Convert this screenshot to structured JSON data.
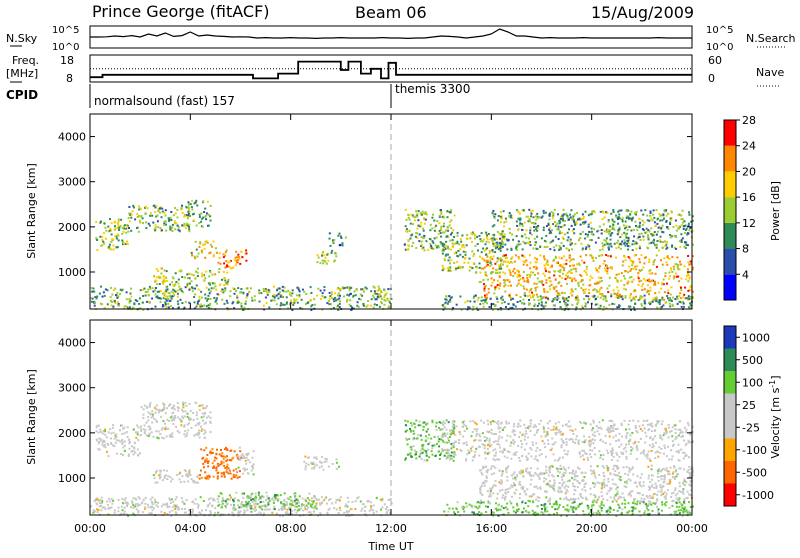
{
  "header": {
    "station": "Prince George (fitACF)",
    "beam": "Beam 06",
    "date": "15/Aug/2009"
  },
  "nsky_panel": {
    "left_label": "N.Sky",
    "right_label": "N.Search",
    "left_ticks": [
      "10^5",
      "10^0"
    ],
    "right_ticks": [
      "10^5",
      "10^0"
    ],
    "trace": [
      0.55,
      0.55,
      0.56,
      0.6,
      0.57,
      0.62,
      0.55,
      0.7,
      0.6,
      0.75,
      0.58,
      0.62,
      0.8,
      0.6,
      0.65,
      0.6,
      0.58,
      0.55,
      0.56,
      0.55,
      0.5,
      0.52,
      0.5,
      0.5,
      0.52,
      0.5,
      0.5,
      0.48,
      0.5,
      0.5,
      0.52,
      0.5,
      0.5,
      0.5,
      0.5,
      0.52,
      0.5,
      0.5,
      0.48,
      0.5,
      0.5,
      0.55,
      0.6,
      0.58,
      0.55,
      0.5,
      0.55,
      0.6,
      0.7,
      0.95,
      0.8,
      0.6,
      0.6,
      0.55,
      0.5,
      0.52,
      0.5,
      0.5,
      0.5,
      0.52,
      0.5,
      0.5,
      0.5,
      0.5,
      0.5,
      0.5,
      0.5,
      0.5,
      0.52,
      0.5,
      0.5,
      0.5,
      0.5
    ]
  },
  "freq_panel": {
    "left_label_1": "Freq.",
    "left_label_2": "[MHz]",
    "right_label": "Nave",
    "left_ticks": [
      "18",
      "8"
    ],
    "right_ticks": [
      "60",
      "0"
    ],
    "nave_level": 0.55,
    "freq_steps": [
      {
        "t": 0.0,
        "v": 0.2
      },
      {
        "t": 0.5,
        "v": 0.3
      },
      {
        "t": 6.5,
        "v": 0.15
      },
      {
        "t": 7.5,
        "v": 0.35
      },
      {
        "t": 8.3,
        "v": 0.85
      },
      {
        "t": 10.0,
        "v": 0.5
      },
      {
        "t": 10.3,
        "v": 0.85
      },
      {
        "t": 10.8,
        "v": 0.35
      },
      {
        "t": 11.2,
        "v": 0.55
      },
      {
        "t": 11.6,
        "v": 0.15
      },
      {
        "t": 11.9,
        "v": 0.8
      },
      {
        "t": 12.2,
        "v": 0.3
      },
      {
        "t": 24.0,
        "v": 0.3
      }
    ]
  },
  "cpid": {
    "label": "CPID",
    "mode_1": "normalsound (fast) 157",
    "mode_2": "themis 3300",
    "switch_time": 12.0
  },
  "chart_data": [
    {
      "type": "heatmap",
      "title": "",
      "xlabel": "Time UT",
      "ylabel": "Slant Range [km]",
      "xlim": [
        0,
        24
      ],
      "ylim": [
        180,
        4500
      ],
      "x_ticks": [
        "00:00",
        "04:00",
        "08:00",
        "12:00",
        "16:00",
        "20:00",
        "00:00"
      ],
      "y_ticks": [
        "1000",
        "2000",
        "3000",
        "4000"
      ],
      "y_tick_values": [
        1000,
        2000,
        3000,
        4000
      ],
      "colorbar_label": "Power [dB]",
      "colorbar_ticks": [
        "4",
        "8",
        "12",
        "16",
        "20",
        "24",
        "28"
      ],
      "colorbar_colors": [
        "#0000ff",
        "#2a4faa",
        "#2e8b57",
        "#9acd32",
        "#ffcc00",
        "#ff8800",
        "#ff0000"
      ],
      "scatter_regions": [
        {
          "t0": 0.2,
          "t1": 1.5,
          "r0": 1500,
          "r1": 2200,
          "intensity": 0.5
        },
        {
          "t0": 1.5,
          "t1": 4.0,
          "r0": 1900,
          "r1": 2500,
          "intensity": 0.45
        },
        {
          "t0": 3.8,
          "t1": 4.8,
          "r0": 2000,
          "r1": 2600,
          "intensity": 0.4
        },
        {
          "t0": 4.0,
          "t1": 5.0,
          "r0": 1300,
          "r1": 1700,
          "intensity": 0.65
        },
        {
          "t0": 5.0,
          "t1": 6.2,
          "r0": 1100,
          "r1": 1500,
          "intensity": 0.8
        },
        {
          "t0": 2.5,
          "t1": 5.5,
          "r0": 700,
          "r1": 1100,
          "intensity": 0.55
        },
        {
          "t0": 0.0,
          "t1": 12.0,
          "r0": 180,
          "r1": 700,
          "intensity": 0.4
        },
        {
          "t0": 9.0,
          "t1": 9.8,
          "r0": 1200,
          "r1": 1500,
          "intensity": 0.45
        },
        {
          "t0": 9.5,
          "t1": 10.2,
          "r0": 1600,
          "r1": 1900,
          "intensity": 0.3
        },
        {
          "t0": 12.5,
          "t1": 14.5,
          "r0": 1500,
          "r1": 2400,
          "intensity": 0.45
        },
        {
          "t0": 14.0,
          "t1": 16.5,
          "r0": 1000,
          "r1": 1900,
          "intensity": 0.5
        },
        {
          "t0": 15.5,
          "t1": 24.0,
          "r0": 400,
          "r1": 1400,
          "intensity": 0.7
        },
        {
          "t0": 16.0,
          "t1": 24.0,
          "r0": 1500,
          "r1": 2400,
          "intensity": 0.4
        },
        {
          "t0": 14.0,
          "t1": 24.0,
          "r0": 180,
          "r1": 500,
          "intensity": 0.35
        }
      ]
    },
    {
      "type": "heatmap",
      "title": "",
      "xlabel": "Time UT",
      "ylabel": "Slant Range [km]",
      "xlim": [
        0,
        24
      ],
      "ylim": [
        180,
        4500
      ],
      "x_ticks": [
        "00:00",
        "04:00",
        "08:00",
        "12:00",
        "16:00",
        "20:00",
        "00:00"
      ],
      "y_ticks": [
        "1000",
        "2000",
        "3000",
        "4000"
      ],
      "y_tick_values": [
        1000,
        2000,
        3000,
        4000
      ],
      "colorbar_label": "Velocity [m s^-1]",
      "colorbar_ticks": [
        "1000",
        "500",
        "100",
        "25",
        "-25",
        "-100",
        "-500",
        "-1000"
      ],
      "colorbar_colors": [
        "#1c39bb",
        "#2e8b57",
        "#66cc33",
        "#c8c8c8",
        "#c8c8c8",
        "#ffa500",
        "#ff6600",
        "#ff0000"
      ],
      "scatter_regions": [
        {
          "t0": 0.2,
          "t1": 2.0,
          "r0": 1500,
          "r1": 2200,
          "class": "gray"
        },
        {
          "t0": 2.0,
          "t1": 4.8,
          "r0": 1900,
          "r1": 2700,
          "class": "gray"
        },
        {
          "t0": 4.3,
          "t1": 6.0,
          "r0": 1000,
          "r1": 1700,
          "class": "orange"
        },
        {
          "t0": 2.5,
          "t1": 4.3,
          "r0": 900,
          "r1": 1200,
          "class": "gray"
        },
        {
          "t0": 5.8,
          "t1": 6.5,
          "r0": 1100,
          "r1": 1700,
          "class": "gray"
        },
        {
          "t0": 0.0,
          "t1": 12.0,
          "r0": 180,
          "r1": 600,
          "class": "gray"
        },
        {
          "t0": 5.0,
          "t1": 9.0,
          "r0": 300,
          "r1": 700,
          "class": "green"
        },
        {
          "t0": 8.5,
          "t1": 10.0,
          "r0": 1200,
          "r1": 1500,
          "class": "gray"
        },
        {
          "t0": 12.5,
          "t1": 14.5,
          "r0": 1400,
          "r1": 2300,
          "class": "green"
        },
        {
          "t0": 14.0,
          "t1": 24.0,
          "r0": 1400,
          "r1": 2300,
          "class": "gray"
        },
        {
          "t0": 15.5,
          "t1": 24.0,
          "r0": 500,
          "r1": 1300,
          "class": "gray"
        },
        {
          "t0": 14.0,
          "t1": 24.0,
          "r0": 180,
          "r1": 500,
          "class": "green"
        }
      ]
    }
  ]
}
